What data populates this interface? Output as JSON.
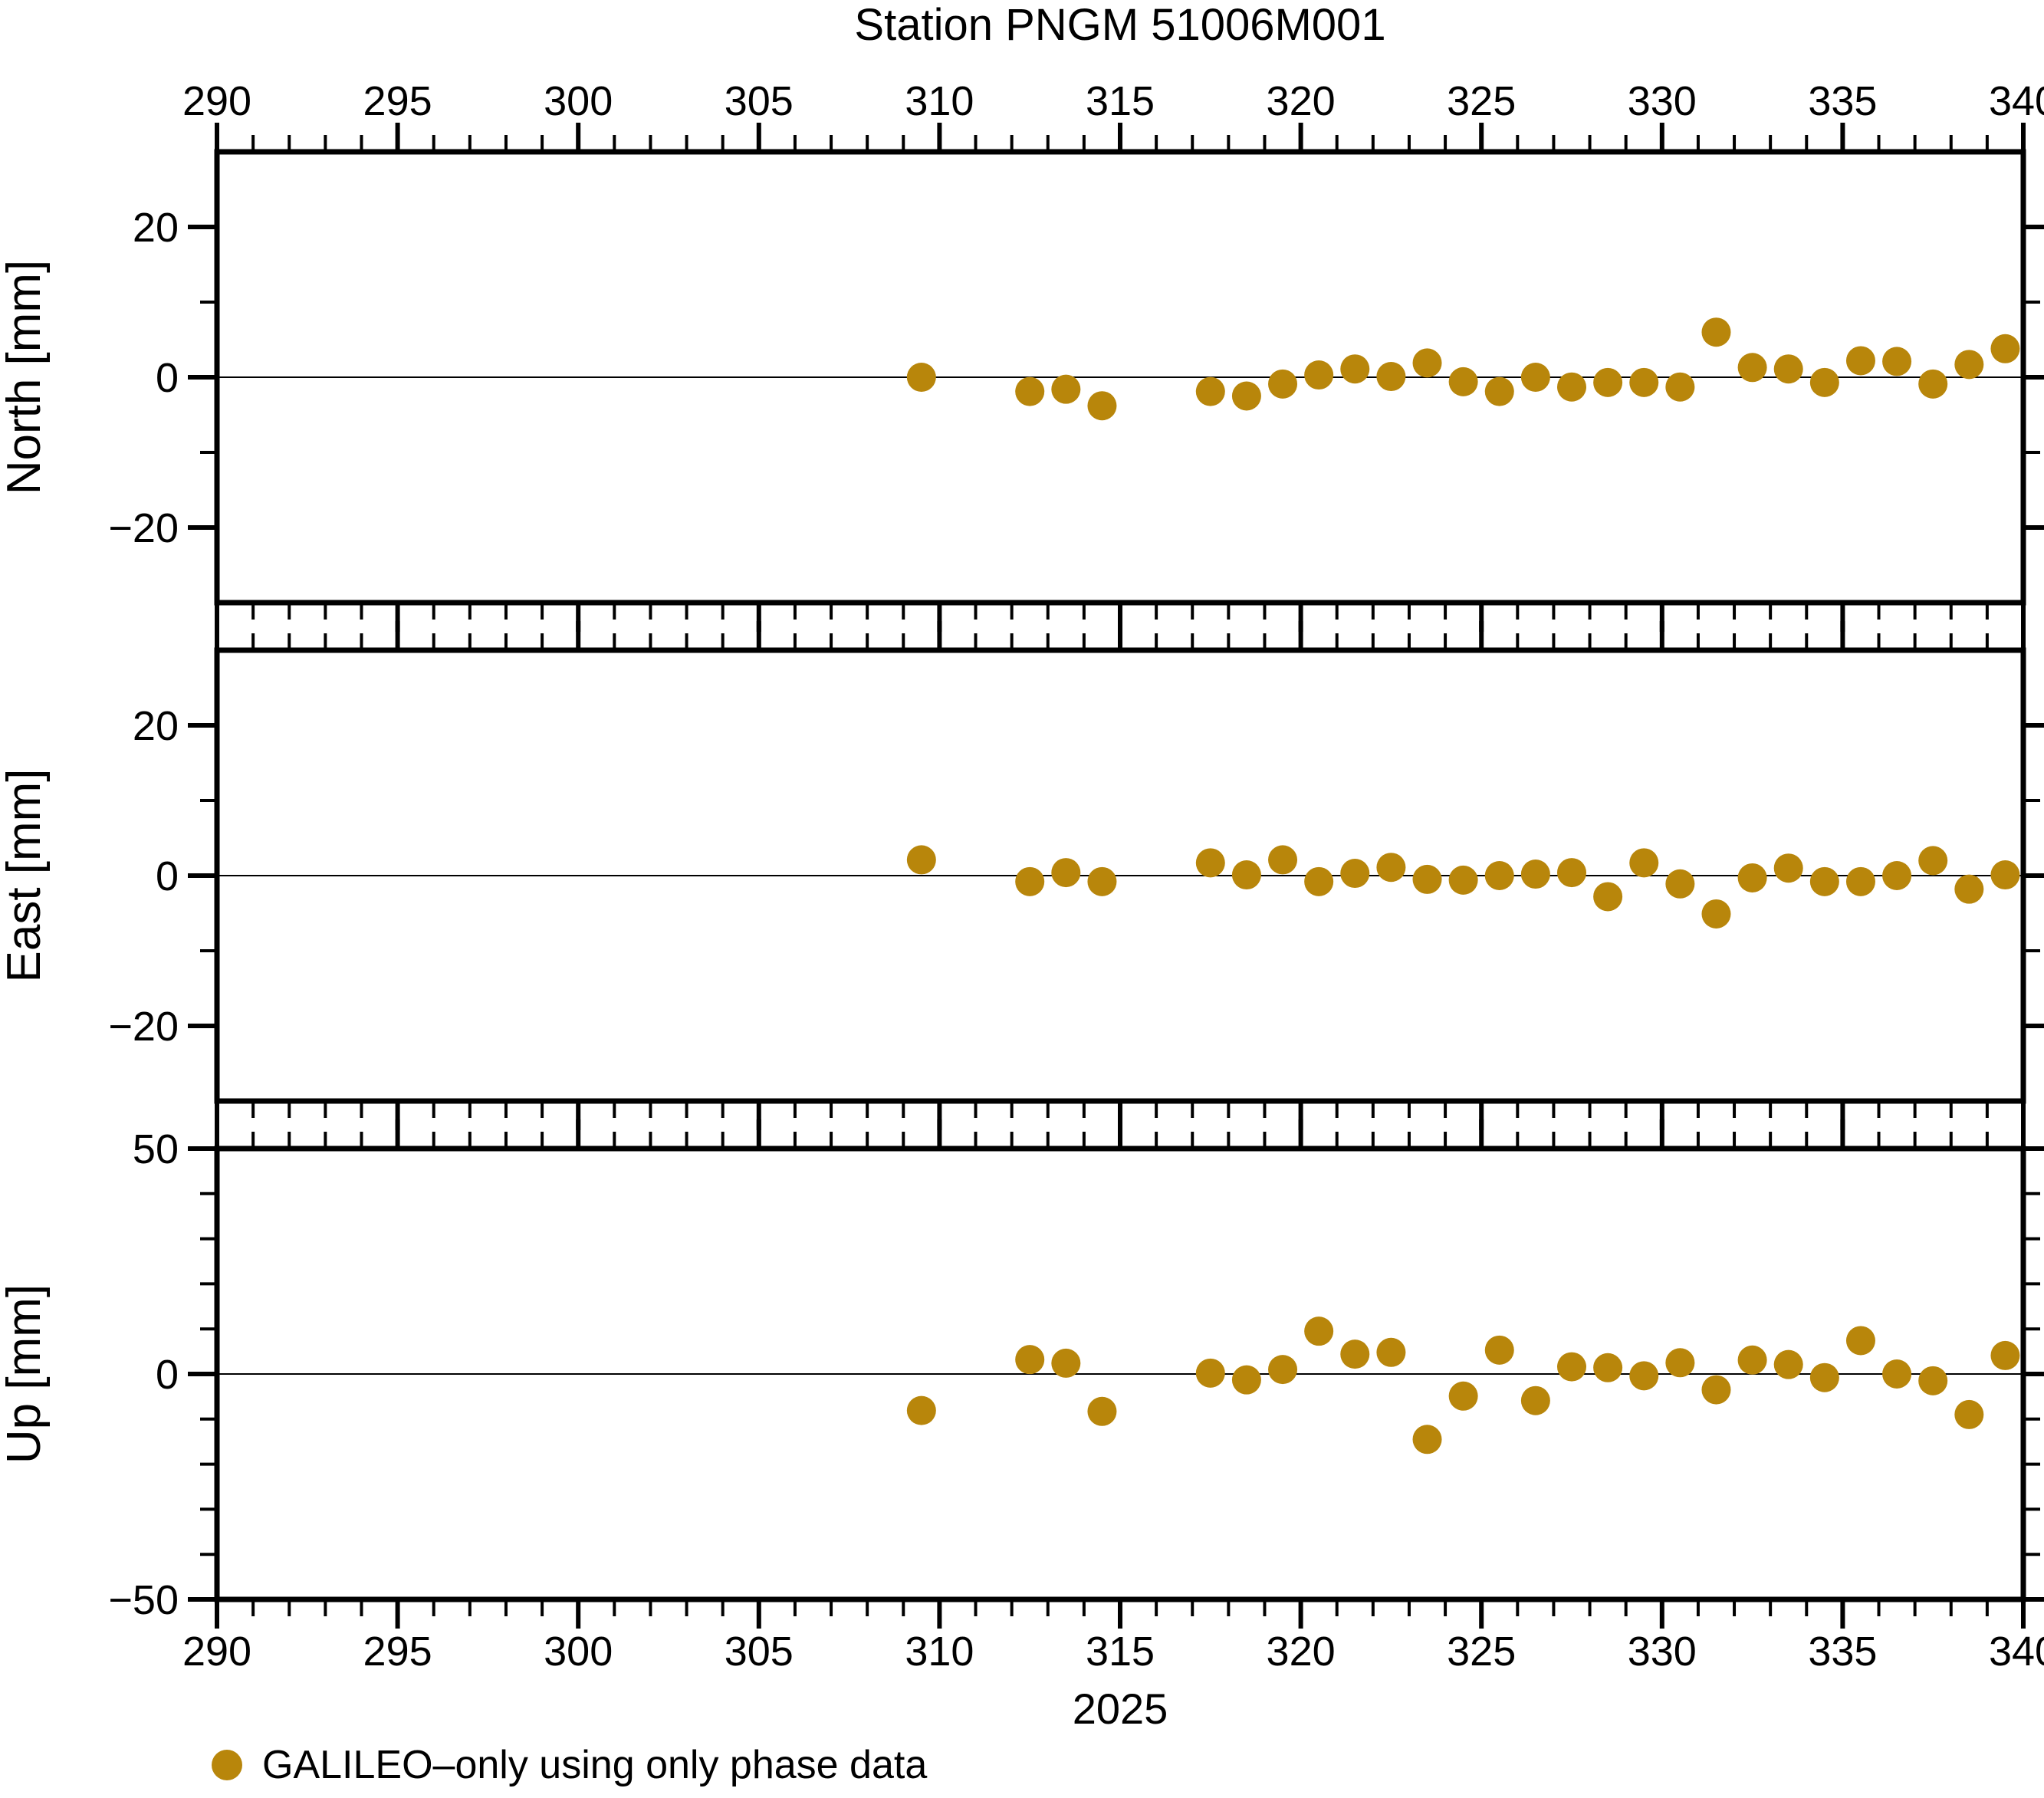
{
  "title": "Station PNGM 51006M001",
  "year_label": "2025",
  "colors": {
    "marker": "#B8860B",
    "axis": "#000000",
    "grid": "#000000",
    "background": "#FFFFFF"
  },
  "legend": {
    "marker_icon": "filled-circle-icon",
    "label": "GALILEO–only using only phase data"
  },
  "x_axis": {
    "min": 290,
    "max": 340,
    "major_tick_interval": 5,
    "minor_tick_interval": 1,
    "tick_labels": [
      290,
      295,
      300,
      305,
      310,
      315,
      320,
      325,
      330,
      335,
      340
    ]
  },
  "chart_data": [
    {
      "type": "scatter",
      "name": "north",
      "ylabel": "North [mm]",
      "ylim": [
        -30,
        30
      ],
      "ytick_major": [
        20,
        0,
        -20
      ],
      "ytick_minor": [
        10,
        -10
      ],
      "grid_y": [
        0
      ],
      "x": [
        309.5,
        312.5,
        313.5,
        314.5,
        317.5,
        318.5,
        319.5,
        320.5,
        321.5,
        322.5,
        323.5,
        324.5,
        325.5,
        326.5,
        327.5,
        328.5,
        329.5,
        330.5,
        331.5,
        332.5,
        333.5,
        334.5,
        335.5,
        336.5,
        337.5,
        338.5,
        339.5
      ],
      "y": [
        0.0,
        -1.9,
        -1.6,
        -3.8,
        -1.9,
        -2.5,
        -0.9,
        0.3,
        1.1,
        0.1,
        1.9,
        -0.6,
        -1.9,
        0.0,
        -1.3,
        -0.7,
        -0.7,
        -1.3,
        6.0,
        1.3,
        1.1,
        -0.7,
        2.2,
        2.1,
        -0.9,
        1.7,
        3.8
      ]
    },
    {
      "type": "scatter",
      "name": "east",
      "ylabel": "East [mm]",
      "ylim": [
        -30,
        30
      ],
      "ytick_major": [
        20,
        0,
        -20
      ],
      "ytick_minor": [
        10,
        -10
      ],
      "grid_y": [
        0
      ],
      "x": [
        309.5,
        312.5,
        313.5,
        314.5,
        317.5,
        318.5,
        319.5,
        320.5,
        321.5,
        322.5,
        323.5,
        324.5,
        325.5,
        326.5,
        327.5,
        328.5,
        329.5,
        330.5,
        331.5,
        332.5,
        333.5,
        334.5,
        335.5,
        336.5,
        337.5,
        338.5,
        339.5
      ],
      "y": [
        2.1,
        -0.8,
        0.4,
        -0.8,
        1.7,
        0.1,
        2.1,
        -0.8,
        0.3,
        1.1,
        -0.5,
        -0.6,
        0.0,
        0.2,
        0.4,
        -2.8,
        1.7,
        -1.1,
        -5.1,
        -0.3,
        1.0,
        -0.8,
        -0.8,
        0.0,
        2.0,
        -1.8,
        0.1
      ]
    },
    {
      "type": "scatter",
      "name": "up",
      "ylabel": "Up [mm]",
      "ylim": [
        -50,
        50
      ],
      "ytick_major": [
        50,
        0,
        -50
      ],
      "ytick_minor": [
        40,
        30,
        20,
        10,
        -10,
        -20,
        -30,
        -40
      ],
      "grid_y": [
        0
      ],
      "x": [
        309.5,
        312.5,
        313.5,
        314.5,
        317.5,
        318.5,
        319.5,
        320.5,
        321.5,
        322.5,
        323.5,
        324.5,
        325.5,
        326.5,
        327.5,
        328.5,
        329.5,
        330.5,
        331.5,
        332.5,
        333.5,
        334.5,
        335.5,
        336.5,
        337.5,
        338.5,
        339.5
      ],
      "y": [
        -8.1,
        3.2,
        2.4,
        -8.3,
        0.2,
        -1.3,
        1.0,
        9.5,
        4.4,
        4.8,
        -14.5,
        -4.9,
        5.3,
        -5.9,
        1.6,
        1.4,
        -0.4,
        2.5,
        -3.5,
        3.1,
        2.1,
        -0.8,
        7.4,
        0.0,
        -1.5,
        -9.0,
        4.1
      ]
    }
  ]
}
